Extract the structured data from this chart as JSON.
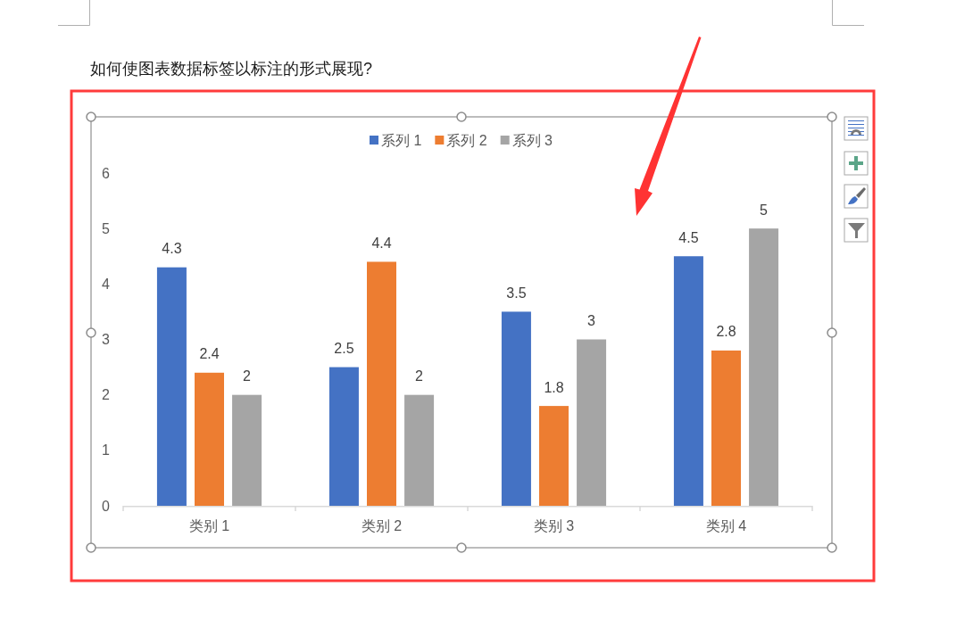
{
  "chart_data": {
    "type": "bar",
    "title": "如何使图表数据标签以标注的形式展现?",
    "categories": [
      "类别 1",
      "类别 2",
      "类别 3",
      "类别 4"
    ],
    "series": [
      {
        "name": "系列 1",
        "color": "#4472c4",
        "values": [
          4.3,
          2.5,
          3.5,
          4.5
        ]
      },
      {
        "name": "系列 2",
        "color": "#ed7d31",
        "values": [
          2.4,
          4.4,
          1.8,
          2.8
        ]
      },
      {
        "name": "系列 3",
        "color": "#a5a5a5",
        "values": [
          2,
          2,
          3,
          5
        ]
      }
    ],
    "ylim": [
      0,
      6
    ],
    "yticks": [
      0,
      1,
      2,
      3,
      4,
      5,
      6
    ],
    "legend": "top",
    "data_labels": true
  }
}
